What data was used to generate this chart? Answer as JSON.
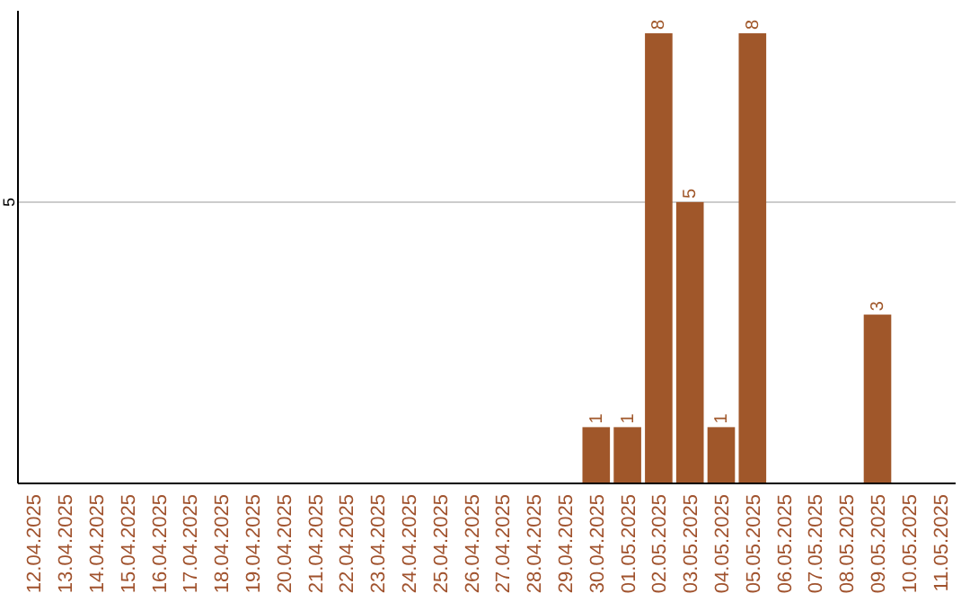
{
  "chart_data": {
    "type": "bar",
    "categories": [
      "12.04.2025",
      "13.04.2025",
      "14.04.2025",
      "15.04.2025",
      "16.04.2025",
      "17.04.2025",
      "18.04.2025",
      "19.04.2025",
      "20.04.2025",
      "21.04.2025",
      "22.04.2025",
      "23.04.2025",
      "24.04.2025",
      "25.04.2025",
      "26.04.2025",
      "27.04.2025",
      "28.04.2025",
      "29.04.2025",
      "30.04.2025",
      "01.05.2025",
      "02.05.2025",
      "03.05.2025",
      "04.05.2025",
      "05.05.2025",
      "06.05.2025",
      "07.05.2025",
      "08.05.2025",
      "09.05.2025",
      "10.05.2025",
      "11.05.2025"
    ],
    "values": [
      null,
      null,
      null,
      null,
      null,
      null,
      null,
      null,
      null,
      null,
      null,
      null,
      null,
      null,
      null,
      null,
      null,
      null,
      1,
      1,
      8,
      5,
      1,
      8,
      null,
      null,
      null,
      3,
      null,
      null
    ],
    "data_labels": true,
    "color": "#a0572a",
    "ylim": [
      0,
      8.4
    ],
    "ref_lines": [
      {
        "axis": "y",
        "value": 5,
        "label": "5",
        "color": "#cccccc"
      }
    ]
  }
}
